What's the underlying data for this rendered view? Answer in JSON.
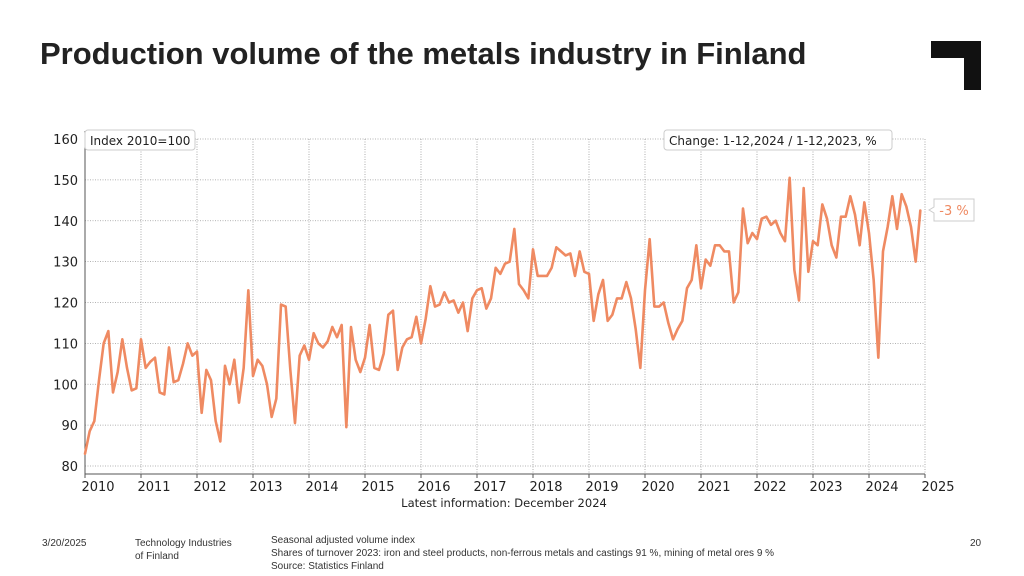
{
  "title": "Production volume of the metals industry in Finland",
  "chart_data": {
    "type": "line",
    "index_label": "Index 2010=100",
    "change_label": "Change: 1-12,2024 / 1-12,2023, %",
    "change_value": "-3 %",
    "xlabel": "Latest information: December 2024",
    "ylim": [
      80,
      160
    ],
    "yticks": [
      80,
      90,
      100,
      110,
      120,
      130,
      140,
      150,
      160
    ],
    "xlim": [
      2010,
      2025
    ],
    "xticks": [
      "2010",
      "2011",
      "2012",
      "2013",
      "2014",
      "2015",
      "2016",
      "2017",
      "2018",
      "2019",
      "2020",
      "2021",
      "2022",
      "2023",
      "2024",
      "2025"
    ],
    "series": [
      {
        "name": "Seasonal adjusted volume index",
        "color": "#ef8a62",
        "start": "2010-01",
        "values": [
          83,
          88.5,
          91,
          101,
          110,
          113,
          98,
          103,
          111,
          104,
          98.5,
          99,
          111,
          104,
          105.5,
          106.5,
          98,
          97.5,
          109,
          100.5,
          101,
          105,
          110,
          107,
          108,
          93,
          103.5,
          101,
          91,
          86,
          104.5,
          100,
          106,
          95.5,
          104,
          123,
          102,
          106,
          104.5,
          100,
          92,
          96.5,
          119.5,
          119,
          103.5,
          90.5,
          107,
          109.5,
          106,
          112.5,
          110,
          109,
          110.5,
          114,
          111.5,
          114.5,
          89.5,
          114,
          106,
          103,
          106.5,
          114.5,
          104,
          103.5,
          107.5,
          117,
          118,
          103.5,
          109,
          111,
          111.5,
          116.5,
          110,
          116,
          124,
          119,
          119.5,
          122.5,
          120,
          120.5,
          117.5,
          120,
          113,
          121,
          123,
          123.5,
          118.5,
          121,
          128.5,
          127,
          129.5,
          130,
          138,
          124.5,
          123,
          121,
          133,
          126.5,
          126.5,
          126.5,
          128.5,
          133.5,
          132.5,
          131.5,
          132,
          126.5,
          132.5,
          127.5,
          127,
          115.5,
          122,
          125.5,
          115.5,
          117,
          121,
          121,
          125,
          121,
          113.5,
          104,
          123,
          135.5,
          119,
          119,
          120,
          115,
          111,
          113.5,
          115.5,
          123.5,
          125.5,
          134,
          123.5,
          130.5,
          129,
          134,
          134,
          132.5,
          132.5,
          120,
          122.5,
          143,
          134.5,
          137,
          135.5,
          140.5,
          141,
          139,
          140,
          137,
          135,
          150.5,
          128,
          120.5,
          148,
          127.5,
          135,
          134,
          144,
          140.5,
          134,
          131,
          141,
          141,
          146,
          141.5,
          134,
          144.5,
          137,
          125.5,
          106.5,
          132.5,
          138.5,
          146,
          138,
          146.5,
          143.5,
          138.5,
          130,
          142.5
        ]
      }
    ]
  },
  "footer": {
    "date": "3/20/2025",
    "org_line1": "Technology Industries",
    "org_line2": "of Finland",
    "note1": "Seasonal adjusted volume index",
    "note2": "Shares of turnover 2023: iron and steel products, non-ferrous metals and castings 91 %, mining of metal ores 9 %",
    "note3": "Source: Statistics Finland",
    "page": "20"
  }
}
